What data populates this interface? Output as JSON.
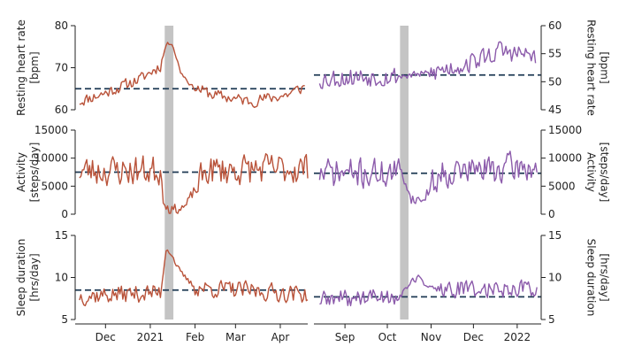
{
  "chart_data": {
    "type": "line",
    "colors": {
      "left_series": "#b9533a",
      "right_series": "#8c5bab",
      "reference": "#1f3a54",
      "shade": "#c4c4c4"
    },
    "rows": [
      {
        "key": "hr",
        "ylabel_lines": [
          "Resting heart rate",
          "[bpm]"
        ]
      },
      {
        "key": "act",
        "ylabel_lines": [
          "Activity",
          "[steps/day]"
        ]
      },
      {
        "key": "sleep",
        "ylabel_lines": [
          "Sleep duration",
          "[hrs/day]"
        ]
      }
    ],
    "left": {
      "x_ticks": [
        {
          "label": "Dec",
          "day": 0
        },
        {
          "label": "2021",
          "day": 31
        },
        {
          "label": "Feb",
          "day": 62
        },
        {
          "label": "Mar",
          "day": 90
        },
        {
          "label": "Apr",
          "day": 121
        }
      ],
      "x_range_days": [
        -21,
        140
      ],
      "shade_days": [
        41,
        47
      ],
      "y": {
        "hr": {
          "range": [
            60,
            80
          ],
          "ticks": [
            "60",
            "70",
            "80"
          ],
          "ref": 65,
          "seed": 11,
          "baseline": [
            [
              -18,
              62
            ],
            [
              0,
              64
            ],
            [
              25,
              67.5
            ],
            [
              38,
              70.5
            ],
            [
              42,
              75.5
            ],
            [
              46,
              76
            ],
            [
              52,
              69
            ],
            [
              60,
              65.5
            ],
            [
              75,
              63.5
            ],
            [
              100,
              62
            ],
            [
              125,
              63.5
            ],
            [
              138,
              65.5
            ]
          ],
          "noise": 1.3
        },
        "act": {
          "range": [
            0,
            15000
          ],
          "ticks": [
            "0",
            "5000",
            "10000",
            "15000"
          ],
          "ref": 7500,
          "seed": 23,
          "baseline": [
            [
              -18,
              7800
            ],
            [
              38,
              7800
            ],
            [
              41,
              2500
            ],
            [
              44,
              800
            ],
            [
              50,
              900
            ],
            [
              56,
              1500
            ],
            [
              62,
              4500
            ],
            [
              70,
              7800
            ],
            [
              140,
              8200
            ]
          ],
          "noise": 2600
        },
        "sleep": {
          "range": [
            5,
            15
          ],
          "ticks": [
            "5",
            "10",
            "15"
          ],
          "ref": 8.5,
          "seed": 37,
          "baseline": [
            [
              -18,
              7.8
            ],
            [
              38,
              8.2
            ],
            [
              42,
              13.5
            ],
            [
              45,
              13
            ],
            [
              52,
              10.5
            ],
            [
              62,
              8.8
            ],
            [
              140,
              8.0
            ]
          ],
          "noise": 1.0
        }
      }
    },
    "right": {
      "x_ticks": [
        {
          "label": "Sep",
          "day": 0
        },
        {
          "label": "Oct",
          "day": 30
        },
        {
          "label": "Nov",
          "day": 61
        },
        {
          "label": "Dec",
          "day": 91
        },
        {
          "label": "2022",
          "day": 122
        }
      ],
      "x_range_days": [
        -22,
        139
      ],
      "shade_days": [
        39,
        45
      ],
      "y": {
        "hr": {
          "range": [
            45,
            60
          ],
          "ticks": [
            "45",
            "50",
            "55",
            "60"
          ],
          "ref": 51.2,
          "seed": 53,
          "baseline": [
            [
              -18,
              50.5
            ],
            [
              20,
              51
            ],
            [
              40,
              51
            ],
            [
              60,
              51.5
            ],
            [
              90,
              53.5
            ],
            [
              110,
              55.5
            ],
            [
              135,
              54.5
            ]
          ],
          "noise": 1.7
        },
        "act": {
          "range": [
            0,
            15000
          ],
          "ticks": [
            "0",
            "5000",
            "10000",
            "15000"
          ],
          "ref": 7300,
          "seed": 71,
          "baseline": [
            [
              -18,
              7300
            ],
            [
              40,
              7300
            ],
            [
              44,
              5000
            ],
            [
              47,
              2800
            ],
            [
              55,
              2500
            ],
            [
              60,
              4500
            ],
            [
              68,
              7500
            ],
            [
              136,
              8500
            ]
          ],
          "noise": 2500
        },
        "sleep": {
          "range": [
            5,
            15
          ],
          "ticks": [
            "5",
            "10",
            "15"
          ],
          "ref": 7.7,
          "seed": 89,
          "baseline": [
            [
              -18,
              7.3
            ],
            [
              40,
              7.9
            ],
            [
              45,
              9.2
            ],
            [
              52,
              10
            ],
            [
              62,
              8.5
            ],
            [
              136,
              8.8
            ]
          ],
          "noise": 1.0
        }
      }
    }
  }
}
